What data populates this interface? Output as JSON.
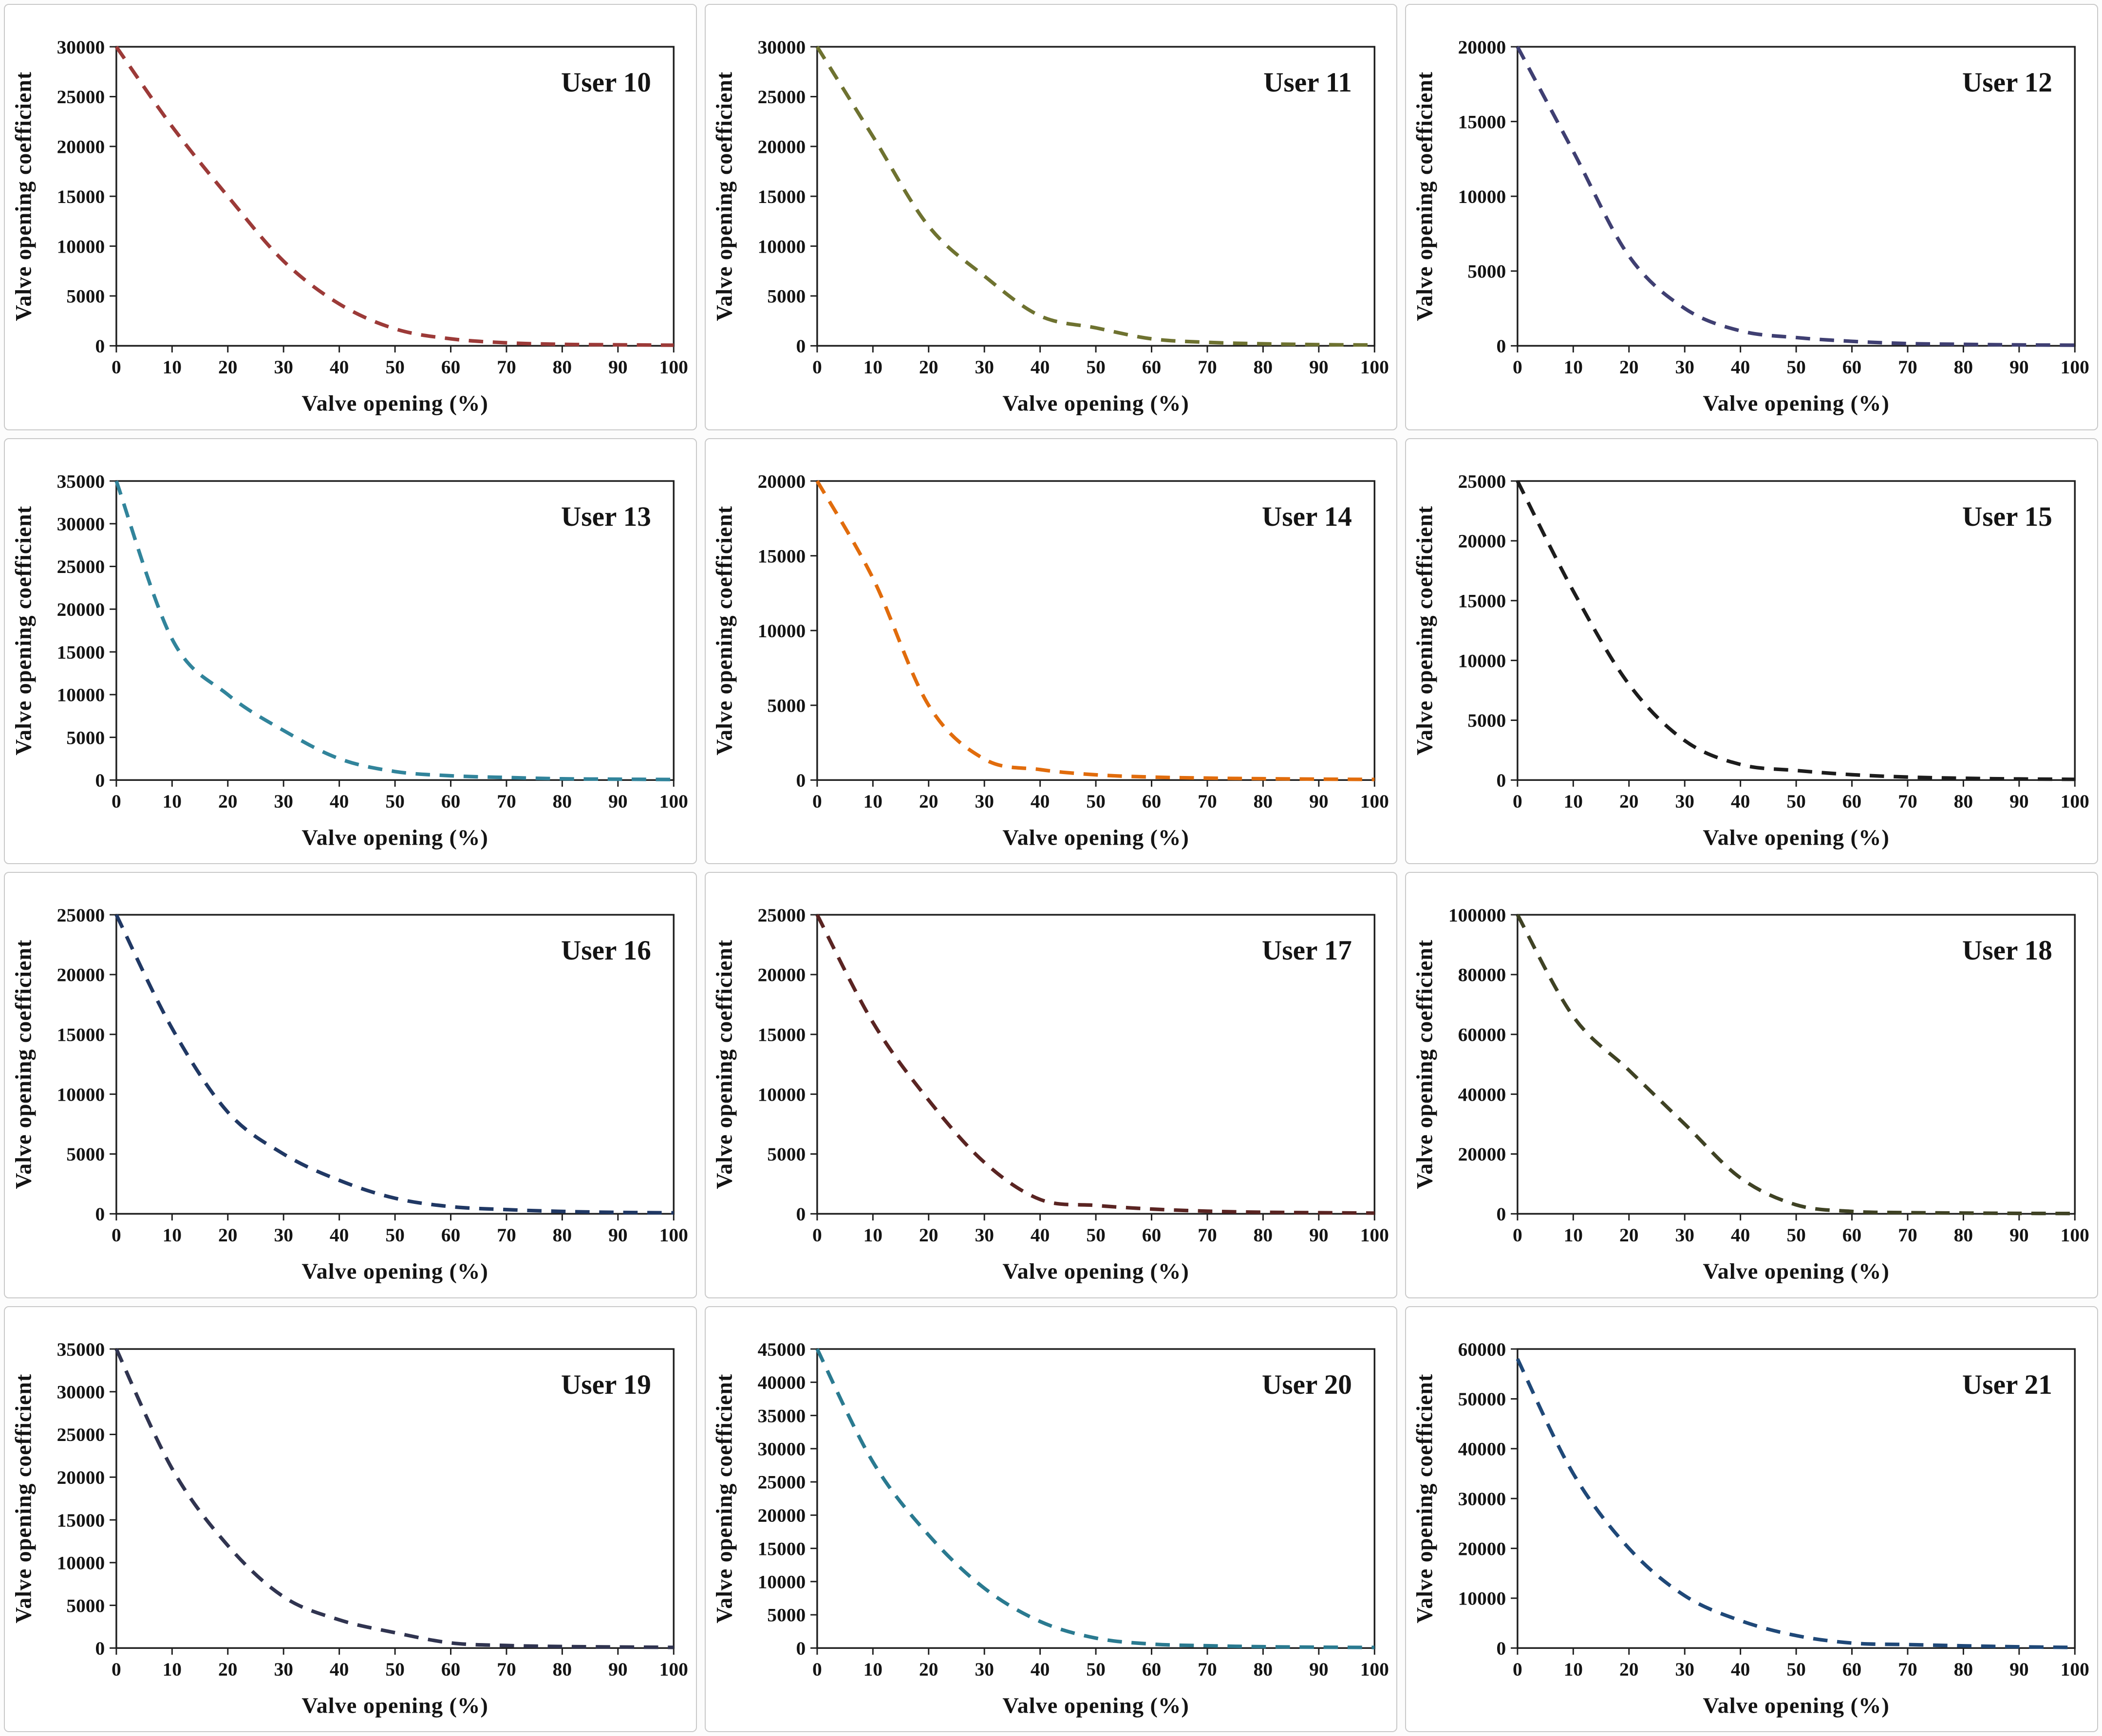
{
  "figure": {
    "xlabel": "Valve opening (%)",
    "ylabel": "Valve opening coefficient",
    "layout": "4 rows x 3 columns",
    "axis_color": "#1f1f1f",
    "background": "#ffffff"
  },
  "chart_data": [
    {
      "type": "line",
      "title": "User 10",
      "color": "#9c3a38",
      "line_style": "dashed",
      "grid": false,
      "legend": "none",
      "xlabel": "Valve opening (%)",
      "ylabel": "Valve opening coefficient",
      "xlim": [
        0,
        100
      ],
      "ylim": [
        0,
        30000
      ],
      "x_ticks": [
        0,
        10,
        20,
        30,
        40,
        50,
        60,
        70,
        80,
        90,
        100
      ],
      "y_ticks": [
        0,
        5000,
        10000,
        15000,
        20000,
        25000,
        30000
      ],
      "x": [
        0,
        10,
        20,
        30,
        40,
        50,
        60,
        70,
        80,
        90,
        100
      ],
      "y": [
        30000,
        22000,
        15000,
        8500,
        4200,
        1700,
        700,
        300,
        150,
        100,
        60
      ]
    },
    {
      "type": "line",
      "title": "User 11",
      "color": "#6e7230",
      "line_style": "dashed",
      "grid": false,
      "legend": "none",
      "xlabel": "Valve opening (%)",
      "ylabel": "Valve opening coefficient",
      "xlim": [
        0,
        100
      ],
      "ylim": [
        0,
        30000
      ],
      "x_ticks": [
        0,
        10,
        20,
        30,
        40,
        50,
        60,
        70,
        80,
        90,
        100
      ],
      "y_ticks": [
        0,
        5000,
        10000,
        15000,
        20000,
        25000,
        30000
      ],
      "x": [
        0,
        10,
        20,
        30,
        40,
        50,
        60,
        70,
        80,
        90,
        100
      ],
      "y": [
        30000,
        21000,
        12000,
        7000,
        3000,
        1800,
        700,
        350,
        200,
        120,
        80
      ]
    },
    {
      "type": "line",
      "title": "User 12",
      "color": "#3f3f72",
      "line_style": "dashed",
      "grid": false,
      "legend": "none",
      "xlabel": "Valve opening (%)",
      "ylabel": "Valve opening coefficient",
      "xlim": [
        0,
        100
      ],
      "ylim": [
        0,
        20000
      ],
      "x_ticks": [
        0,
        10,
        20,
        30,
        40,
        50,
        60,
        70,
        80,
        90,
        100
      ],
      "y_ticks": [
        0,
        5000,
        10000,
        15000,
        20000
      ],
      "x": [
        0,
        10,
        20,
        30,
        40,
        50,
        60,
        70,
        80,
        90,
        100
      ],
      "y": [
        20000,
        13000,
        6000,
        2500,
        1000,
        550,
        300,
        150,
        100,
        60,
        40
      ]
    },
    {
      "type": "line",
      "title": "User 13",
      "color": "#31849b",
      "line_style": "dashed",
      "grid": false,
      "legend": "none",
      "xlabel": "Valve opening (%)",
      "ylabel": "Valve opening coefficient",
      "xlim": [
        0,
        100
      ],
      "ylim": [
        0,
        35000
      ],
      "x_ticks": [
        0,
        10,
        20,
        30,
        40,
        50,
        60,
        70,
        80,
        90,
        100
      ],
      "y_ticks": [
        0,
        5000,
        10000,
        15000,
        20000,
        25000,
        30000,
        35000
      ],
      "x": [
        0,
        10,
        20,
        30,
        40,
        50,
        60,
        70,
        80,
        90,
        100
      ],
      "y": [
        35000,
        16500,
        10000,
        5800,
        2500,
        1000,
        500,
        300,
        150,
        100,
        60
      ]
    },
    {
      "type": "line",
      "title": "User 14",
      "color": "#e16c0c",
      "line_style": "dashed",
      "grid": false,
      "legend": "none",
      "xlabel": "Valve opening (%)",
      "ylabel": "Valve opening coefficient",
      "xlim": [
        0,
        100
      ],
      "ylim": [
        0,
        20000
      ],
      "x_ticks": [
        0,
        10,
        20,
        30,
        40,
        50,
        60,
        70,
        80,
        90,
        100
      ],
      "y_ticks": [
        0,
        5000,
        10000,
        15000,
        20000
      ],
      "x": [
        0,
        10,
        20,
        30,
        40,
        50,
        60,
        70,
        80,
        90,
        100
      ],
      "y": [
        20000,
        13500,
        5000,
        1400,
        700,
        350,
        200,
        130,
        90,
        60,
        40
      ]
    },
    {
      "type": "line",
      "title": "User 15",
      "color": "#1c1c1c",
      "line_style": "dashed",
      "grid": false,
      "legend": "none",
      "xlabel": "Valve opening (%)",
      "ylabel": "Valve opening coefficient",
      "xlim": [
        0,
        100
      ],
      "ylim": [
        0,
        25000
      ],
      "x_ticks": [
        0,
        10,
        20,
        30,
        40,
        50,
        60,
        70,
        80,
        90,
        100
      ],
      "y_ticks": [
        0,
        5000,
        10000,
        15000,
        20000,
        25000
      ],
      "x": [
        0,
        10,
        20,
        30,
        40,
        50,
        60,
        70,
        80,
        90,
        100
      ],
      "y": [
        25000,
        15800,
        8000,
        3300,
        1300,
        800,
        450,
        250,
        150,
        90,
        60
      ]
    },
    {
      "type": "line",
      "title": "User 16",
      "color": "#203864",
      "line_style": "dashed",
      "grid": false,
      "legend": "none",
      "xlabel": "Valve opening (%)",
      "ylabel": "Valve opening coefficient",
      "xlim": [
        0,
        100
      ],
      "ylim": [
        0,
        25000
      ],
      "x_ticks": [
        0,
        10,
        20,
        30,
        40,
        50,
        60,
        70,
        80,
        90,
        100
      ],
      "y_ticks": [
        0,
        5000,
        10000,
        15000,
        20000,
        25000
      ],
      "x": [
        0,
        10,
        20,
        30,
        40,
        50,
        60,
        70,
        80,
        90,
        100
      ],
      "y": [
        25000,
        15500,
        8500,
        5000,
        2800,
        1300,
        600,
        350,
        200,
        120,
        80
      ]
    },
    {
      "type": "line",
      "title": "User 17",
      "color": "#5a2422",
      "line_style": "dashed",
      "grid": false,
      "legend": "none",
      "xlabel": "Valve opening (%)",
      "ylabel": "Valve opening coefficient",
      "xlim": [
        0,
        100
      ],
      "ylim": [
        0,
        25000
      ],
      "x_ticks": [
        0,
        10,
        20,
        30,
        40,
        50,
        60,
        70,
        80,
        90,
        100
      ],
      "y_ticks": [
        0,
        5000,
        10000,
        15000,
        20000,
        25000
      ],
      "x": [
        0,
        10,
        20,
        30,
        40,
        50,
        60,
        70,
        80,
        90,
        100
      ],
      "y": [
        25000,
        16000,
        9500,
        4300,
        1200,
        700,
        400,
        220,
        130,
        90,
        60
      ]
    },
    {
      "type": "line",
      "title": "User 18",
      "color": "#3f4224",
      "line_style": "dashed",
      "grid": false,
      "legend": "none",
      "xlabel": "Valve opening (%)",
      "ylabel": "Valve opening coefficient",
      "xlim": [
        0,
        100
      ],
      "ylim": [
        0,
        100000
      ],
      "x_ticks": [
        0,
        10,
        20,
        30,
        40,
        50,
        60,
        70,
        80,
        90,
        100
      ],
      "y_ticks": [
        0,
        20000,
        40000,
        60000,
        80000,
        100000
      ],
      "x": [
        0,
        10,
        20,
        30,
        40,
        50,
        60,
        70,
        80,
        90,
        100
      ],
      "y": [
        100000,
        66000,
        48000,
        30000,
        12000,
        3000,
        800,
        400,
        250,
        150,
        100
      ]
    },
    {
      "type": "line",
      "title": "User 19",
      "color": "#303450",
      "line_style": "dashed",
      "grid": false,
      "legend": "none",
      "xlabel": "Valve opening (%)",
      "ylabel": "Valve opening coefficient",
      "xlim": [
        0,
        100
      ],
      "ylim": [
        0,
        35000
      ],
      "x_ticks": [
        0,
        10,
        20,
        30,
        40,
        50,
        60,
        70,
        80,
        90,
        100
      ],
      "y_ticks": [
        0,
        5000,
        10000,
        15000,
        20000,
        25000,
        30000,
        35000
      ],
      "x": [
        0,
        10,
        20,
        30,
        40,
        50,
        60,
        70,
        80,
        90,
        100
      ],
      "y": [
        35000,
        21000,
        12000,
        6000,
        3300,
        1800,
        600,
        300,
        180,
        120,
        80
      ]
    },
    {
      "type": "line",
      "title": "User 20",
      "color": "#2a7a90",
      "line_style": "dashed",
      "grid": false,
      "legend": "none",
      "xlabel": "Valve opening (%)",
      "ylabel": "Valve opening coefficient",
      "xlim": [
        0,
        100
      ],
      "ylim": [
        0,
        45000
      ],
      "x_ticks": [
        0,
        10,
        20,
        30,
        40,
        50,
        60,
        70,
        80,
        90,
        100
      ],
      "y_ticks": [
        0,
        5000,
        10000,
        15000,
        20000,
        25000,
        30000,
        35000,
        40000,
        45000
      ],
      "x": [
        0,
        10,
        20,
        30,
        40,
        50,
        60,
        70,
        80,
        90,
        100
      ],
      "y": [
        45000,
        28000,
        17000,
        9000,
        4000,
        1500,
        600,
        350,
        200,
        130,
        90
      ]
    },
    {
      "type": "line",
      "title": "User 21",
      "color": "#1f4878",
      "line_style": "dashed",
      "grid": false,
      "legend": "none",
      "xlabel": "Valve opening (%)",
      "ylabel": "Valve opening coefficient",
      "xlim": [
        0,
        100
      ],
      "ylim": [
        0,
        60000
      ],
      "x_ticks": [
        0,
        10,
        20,
        30,
        40,
        50,
        60,
        70,
        80,
        90,
        100
      ],
      "y_ticks": [
        0,
        10000,
        20000,
        30000,
        40000,
        50000,
        60000
      ],
      "x": [
        0,
        10,
        20,
        30,
        40,
        50,
        60,
        70,
        80,
        90,
        100
      ],
      "y": [
        58000,
        35000,
        20000,
        10500,
        5500,
        2500,
        1000,
        700,
        450,
        250,
        120
      ]
    }
  ]
}
